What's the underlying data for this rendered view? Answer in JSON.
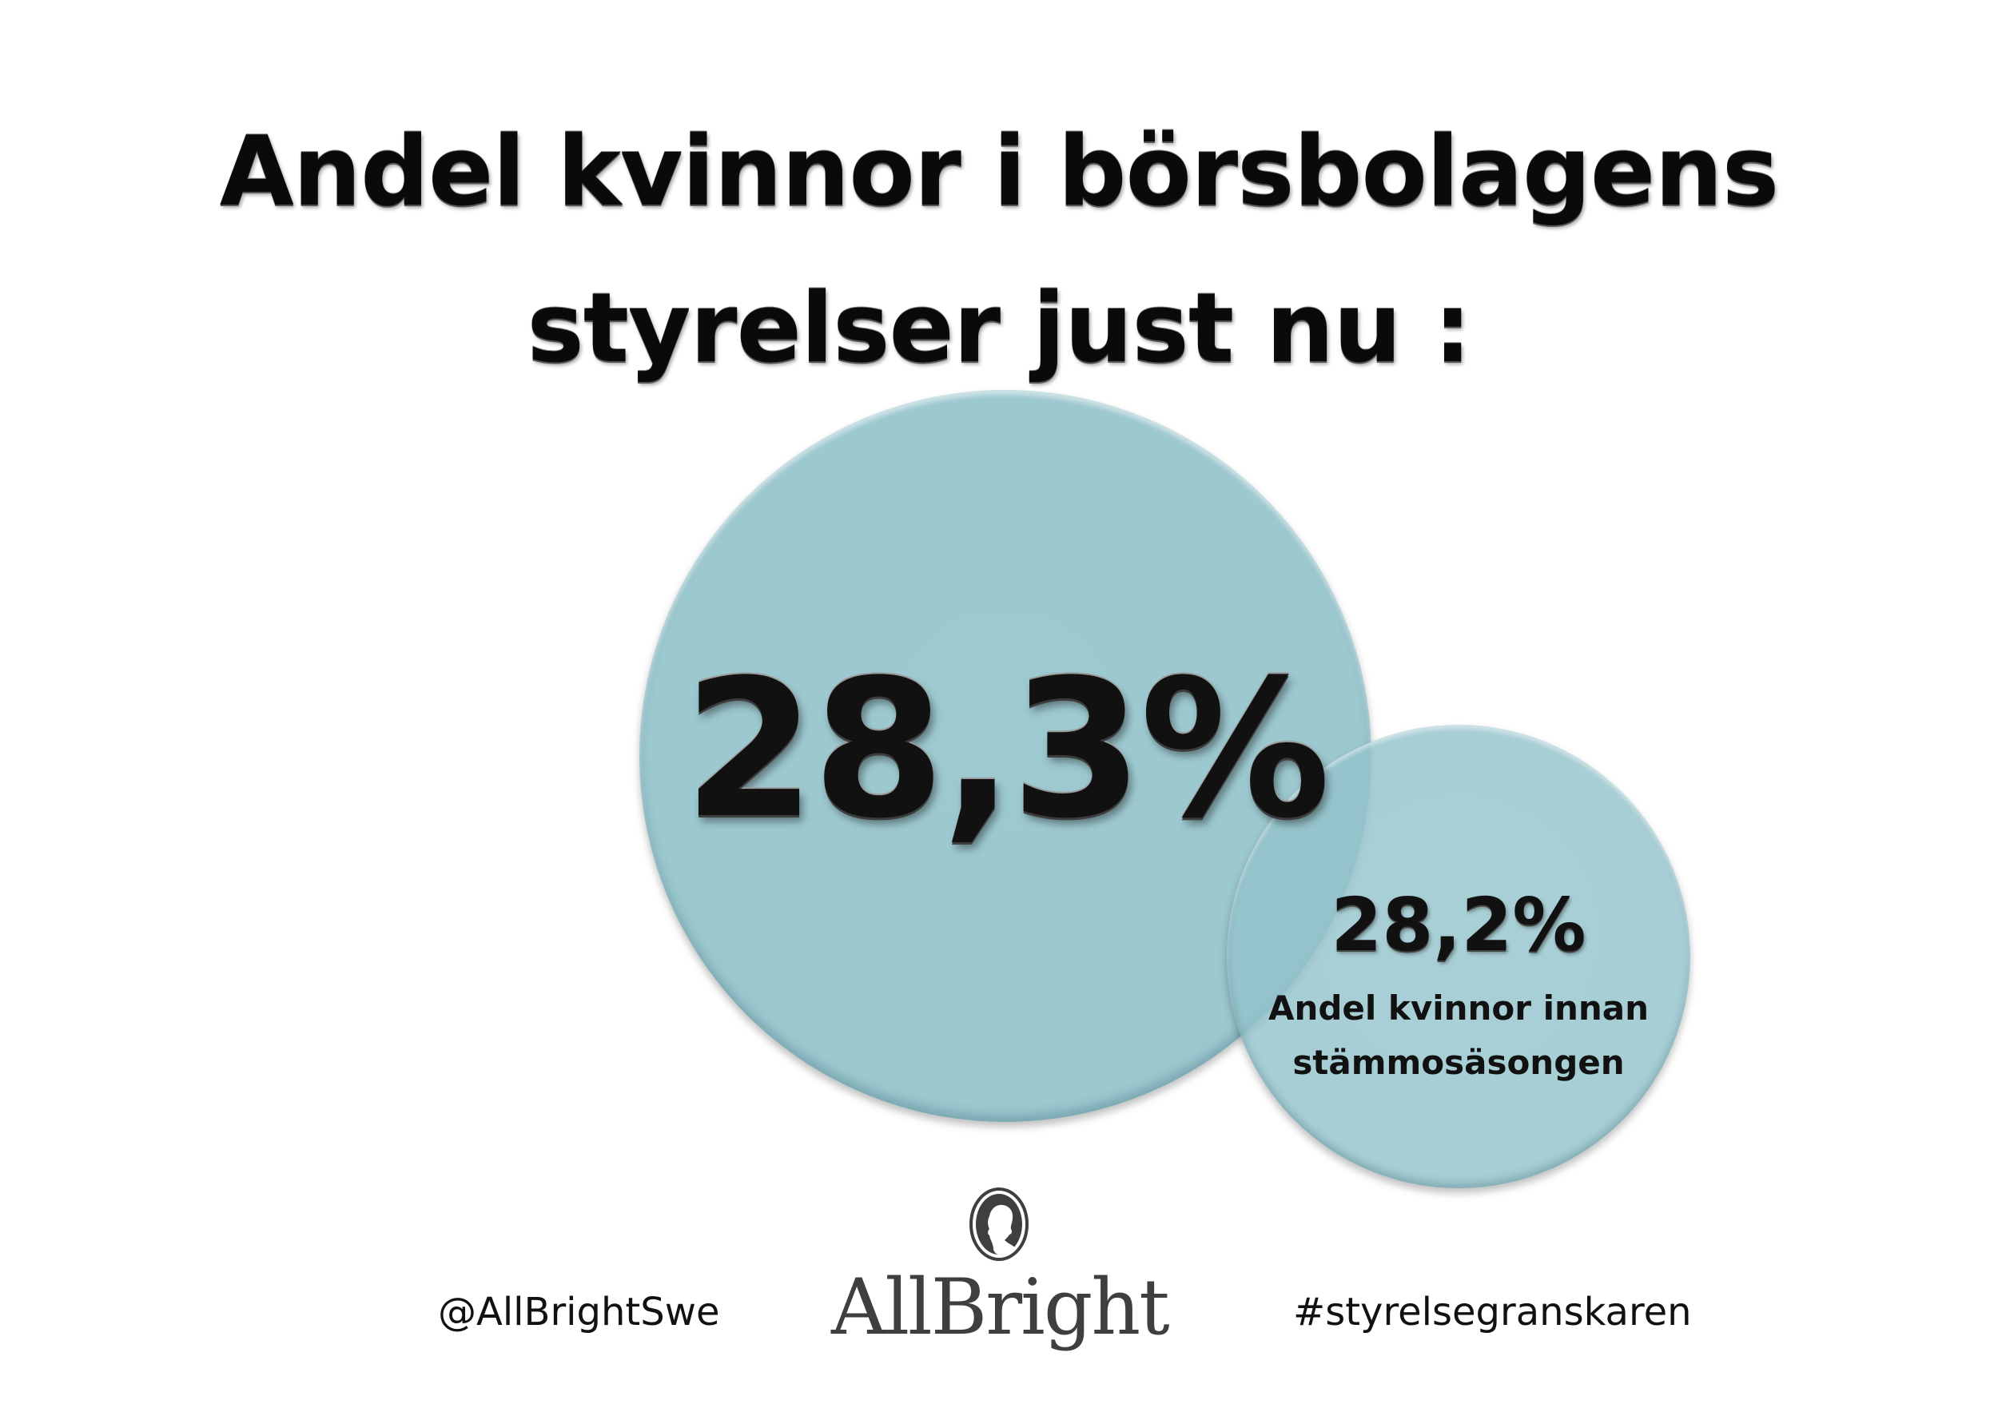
{
  "title": {
    "line1": "Andel kvinnor i börsbolagens",
    "line2": "styrelser just nu :"
  },
  "big_circle": {
    "value": "28,3%",
    "color": "#94c3cb"
  },
  "small_circle": {
    "value": "28,2%",
    "caption_line1": "Andel kvinnor innan",
    "caption_line2": "stämmosäsongen",
    "color": "#94c3cb"
  },
  "footer": {
    "handle": "@AllBrightSwe",
    "hashtag": "#styrelsegranskaren"
  },
  "logo": {
    "wordmark": "AllBright",
    "icon": "silhouette-portrait-icon",
    "color": "#3f3f3f"
  }
}
